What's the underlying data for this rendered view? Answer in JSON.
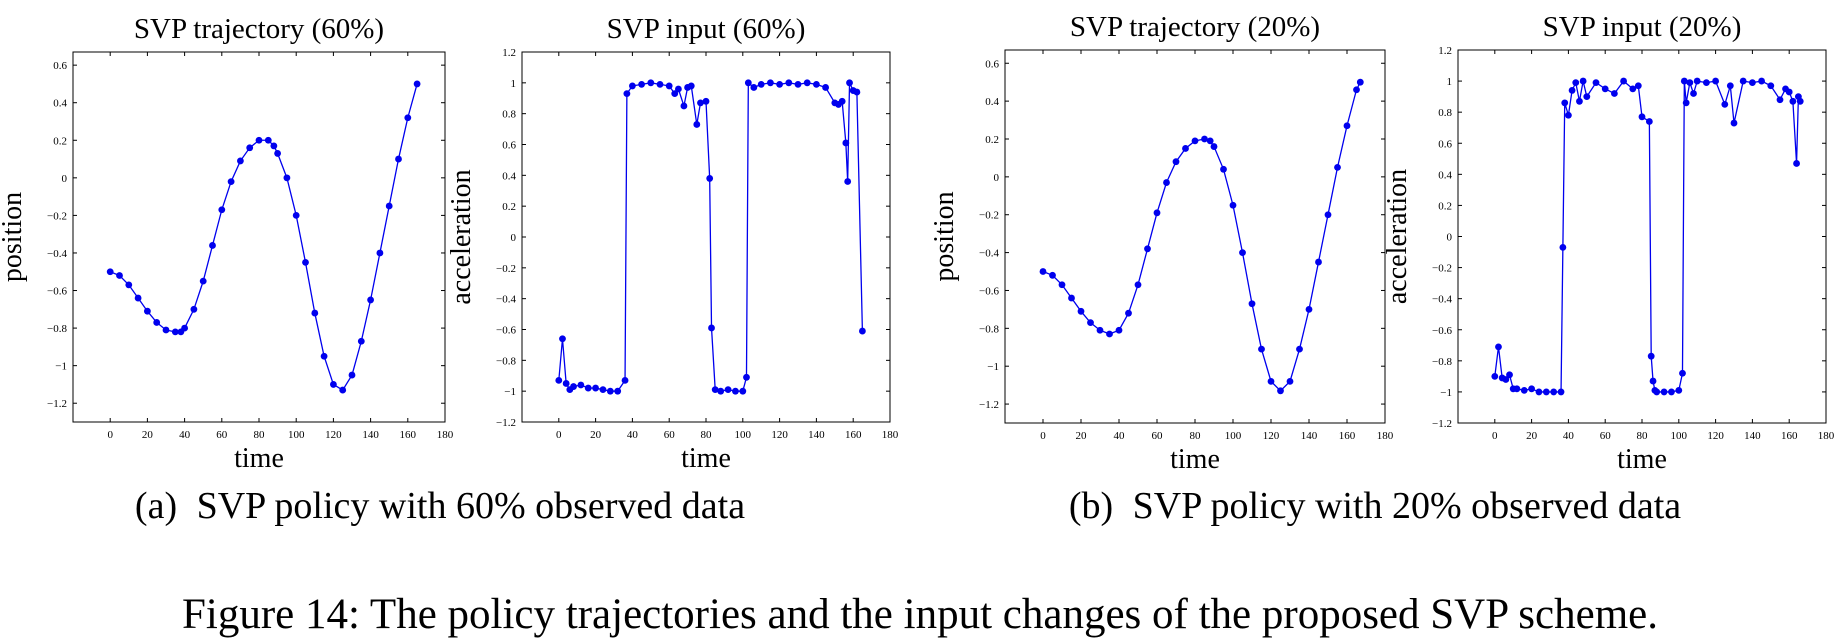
{
  "figure": {
    "caption": "Figure 14: The policy trajectories and the input changes of the proposed SVP scheme.",
    "subcaptions": [
      {
        "label": "(a)",
        "text": "SVP policy with 60% observed data"
      },
      {
        "label": "(b)",
        "text": "SVP policy with 20% observed data"
      }
    ]
  },
  "colors": {
    "series": "#0000ee",
    "axis": "#000000"
  },
  "chart_data": [
    {
      "type": "line",
      "title": "SVP trajectory (60%)",
      "xlabel": "time",
      "ylabel": "position",
      "xlim": [
        -20,
        180
      ],
      "ylim": [
        -1.3,
        0.67
      ],
      "xticks": [
        0,
        20,
        40,
        60,
        80,
        100,
        120,
        140,
        160,
        180
      ],
      "xtick_labels": [
        "0",
        "20",
        "40",
        "60",
        "80",
        "100",
        "120",
        "140",
        "160",
        "180"
      ],
      "yticks": [
        -1.2,
        -1,
        -0.8,
        -0.6,
        -0.4,
        -0.2,
        0,
        0.2,
        0.4,
        0.6
      ],
      "ytick_labels": [
        "−1.2",
        "−1",
        "−0.8",
        "−0.6",
        "−0.4",
        "−0.2",
        "0",
        "0.2",
        "0.4",
        "0.6"
      ],
      "grid": false,
      "series": [
        {
          "x": [
            0,
            5,
            10,
            15,
            20,
            25,
            30,
            35,
            38,
            40,
            45,
            50,
            55,
            60,
            65,
            70,
            75,
            80,
            85,
            88,
            90,
            95,
            100,
            105,
            110,
            115,
            120,
            125,
            130,
            135,
            140,
            145,
            150,
            155,
            160,
            165
          ],
          "y": [
            -0.5,
            -0.52,
            -0.57,
            -0.64,
            -0.71,
            -0.77,
            -0.81,
            -0.82,
            -0.82,
            -0.8,
            -0.7,
            -0.55,
            -0.36,
            -0.17,
            -0.02,
            0.09,
            0.16,
            0.2,
            0.2,
            0.17,
            0.13,
            0.0,
            -0.2,
            -0.45,
            -0.72,
            -0.95,
            -1.1,
            -1.13,
            -1.05,
            -0.87,
            -0.65,
            -0.4,
            -0.15,
            0.1,
            0.32,
            0.5
          ]
        }
      ]
    },
    {
      "type": "line",
      "title": "SVP input (60%)",
      "xlabel": "time",
      "ylabel": "acceleration",
      "xlim": [
        -20,
        180
      ],
      "ylim": [
        -1.2,
        1.2
      ],
      "xticks": [
        0,
        20,
        40,
        60,
        80,
        100,
        120,
        140,
        160,
        180
      ],
      "xtick_labels": [
        "0",
        "20",
        "40",
        "60",
        "80",
        "100",
        "120",
        "140",
        "160",
        "180"
      ],
      "yticks": [
        -1.2,
        -1,
        -0.8,
        -0.6,
        -0.4,
        -0.2,
        0,
        0.2,
        0.4,
        0.6,
        0.8,
        1,
        1.2
      ],
      "ytick_labels": [
        "−1.2",
        "−1",
        "−0.8",
        "−0.6",
        "−0.4",
        "−0.2",
        "0",
        "0.2",
        "0.4",
        "0.6",
        "0.8",
        "1",
        "1.2"
      ],
      "grid": false,
      "series": [
        {
          "x": [
            0,
            2,
            4,
            6,
            8,
            12,
            16,
            20,
            24,
            28,
            32,
            36,
            37,
            40,
            45,
            50,
            55,
            60,
            63,
            65,
            68,
            70,
            72,
            75,
            77,
            80,
            82,
            83,
            85,
            88,
            92,
            96,
            100,
            102,
            103,
            106,
            110,
            115,
            120,
            125,
            130,
            135,
            140,
            145,
            150,
            152,
            154,
            156,
            157,
            158,
            160,
            162,
            165
          ],
          "y": [
            -0.93,
            -0.66,
            -0.95,
            -0.99,
            -0.97,
            -0.96,
            -0.98,
            -0.98,
            -0.99,
            -1.0,
            -1.0,
            -0.93,
            0.93,
            0.98,
            0.99,
            1.0,
            0.99,
            0.98,
            0.93,
            0.96,
            0.85,
            0.97,
            0.98,
            0.73,
            0.87,
            0.88,
            0.38,
            -0.59,
            -0.99,
            -1.0,
            -0.99,
            -1.0,
            -1.0,
            -0.91,
            1.0,
            0.97,
            0.99,
            1.0,
            0.99,
            1.0,
            0.99,
            1.0,
            0.99,
            0.97,
            0.87,
            0.86,
            0.88,
            0.61,
            0.36,
            1.0,
            0.95,
            0.94,
            -0.61
          ]
        }
      ]
    },
    {
      "type": "line",
      "title": "SVP trajectory (20%)",
      "xlabel": "time",
      "ylabel": "position",
      "xlim": [
        -20,
        180
      ],
      "ylim": [
        -1.3,
        0.67
      ],
      "xticks": [
        0,
        20,
        40,
        60,
        80,
        100,
        120,
        140,
        160,
        180
      ],
      "xtick_labels": [
        "0",
        "20",
        "40",
        "60",
        "80",
        "100",
        "120",
        "140",
        "160",
        "180"
      ],
      "yticks": [
        -1.2,
        -1,
        -0.8,
        -0.6,
        -0.4,
        -0.2,
        0,
        0.2,
        0.4,
        0.6
      ],
      "ytick_labels": [
        "−1.2",
        "−1",
        "−0.8",
        "−0.6",
        "−0.4",
        "−0.2",
        "0",
        "0.2",
        "0.4",
        "0.6"
      ],
      "grid": false,
      "series": [
        {
          "x": [
            0,
            5,
            10,
            15,
            20,
            25,
            30,
            35,
            40,
            45,
            50,
            55,
            60,
            65,
            70,
            75,
            80,
            85,
            88,
            90,
            95,
            100,
            105,
            110,
            115,
            120,
            125,
            130,
            135,
            140,
            145,
            150,
            155,
            160,
            165,
            167
          ],
          "y": [
            -0.5,
            -0.52,
            -0.57,
            -0.64,
            -0.71,
            -0.77,
            -0.81,
            -0.83,
            -0.81,
            -0.72,
            -0.57,
            -0.38,
            -0.19,
            -0.03,
            0.08,
            0.15,
            0.19,
            0.2,
            0.19,
            0.16,
            0.04,
            -0.15,
            -0.4,
            -0.67,
            -0.91,
            -1.08,
            -1.13,
            -1.08,
            -0.91,
            -0.7,
            -0.45,
            -0.2,
            0.05,
            0.27,
            0.46,
            0.5
          ]
        }
      ]
    },
    {
      "type": "line",
      "title": "SVP input (20%)",
      "xlabel": "time",
      "ylabel": "acceleration",
      "xlim": [
        -20,
        180
      ],
      "ylim": [
        -1.2,
        1.2
      ],
      "xticks": [
        0,
        20,
        40,
        60,
        80,
        100,
        120,
        140,
        160,
        180
      ],
      "xtick_labels": [
        "0",
        "20",
        "40",
        "60",
        "80",
        "100",
        "120",
        "140",
        "160",
        "180"
      ],
      "yticks": [
        -1.2,
        -1,
        -0.8,
        -0.6,
        -0.4,
        -0.2,
        0,
        0.2,
        0.4,
        0.6,
        0.8,
        1,
        1.2
      ],
      "ytick_labels": [
        "−1.2",
        "−1",
        "−0.8",
        "−0.6",
        "−0.4",
        "−0.2",
        "0",
        "0.2",
        "0.4",
        "0.6",
        "0.8",
        "1",
        "1.2"
      ],
      "grid": false,
      "series": [
        {
          "x": [
            0,
            2,
            4,
            6,
            8,
            10,
            12,
            16,
            20,
            24,
            28,
            32,
            36,
            37,
            38,
            40,
            42,
            44,
            46,
            48,
            50,
            55,
            60,
            65,
            70,
            75,
            78,
            80,
            84,
            85,
            86,
            87,
            88,
            92,
            96,
            100,
            102,
            103,
            104,
            106,
            108,
            110,
            115,
            120,
            125,
            128,
            130,
            135,
            140,
            145,
            150,
            155,
            158,
            160,
            162,
            164,
            165,
            166
          ],
          "y": [
            -0.9,
            -0.71,
            -0.91,
            -0.92,
            -0.89,
            -0.98,
            -0.98,
            -0.99,
            -0.98,
            -1.0,
            -1.0,
            -1.0,
            -1.0,
            -0.07,
            0.86,
            0.78,
            0.94,
            0.99,
            0.87,
            1.0,
            0.9,
            0.99,
            0.95,
            0.92,
            1.0,
            0.95,
            0.97,
            0.77,
            0.74,
            -0.77,
            -0.93,
            -0.99,
            -1.0,
            -1.0,
            -1.0,
            -0.99,
            -0.88,
            1.0,
            0.86,
            0.99,
            0.92,
            1.0,
            0.99,
            1.0,
            0.85,
            0.97,
            0.73,
            1.0,
            0.99,
            1.0,
            0.97,
            0.88,
            0.95,
            0.93,
            0.87,
            0.47,
            0.9,
            0.87
          ]
        }
      ]
    }
  ]
}
